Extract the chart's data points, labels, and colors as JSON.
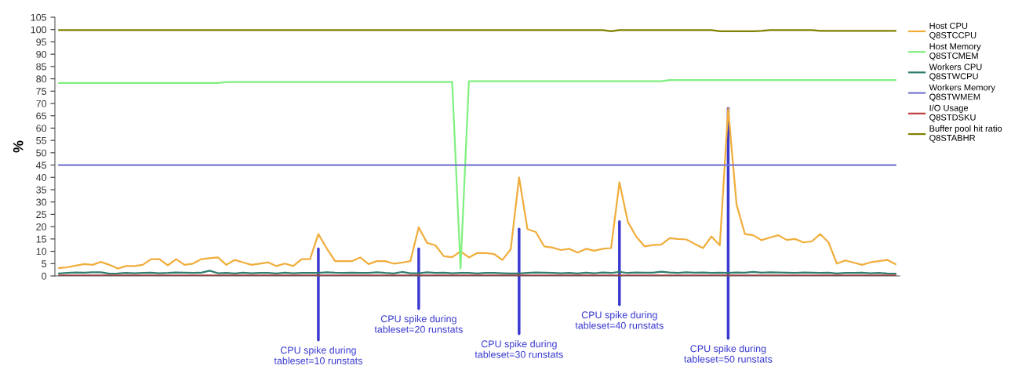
{
  "chart_data": {
    "type": "line",
    "ylabel": "%",
    "categories": [
      null,
      null,
      null,
      null,
      null,
      null,
      null,
      null,
      null,
      null,
      null,
      null,
      null,
      null,
      null,
      null,
      null,
      null,
      null,
      null,
      null,
      null,
      null,
      null,
      null,
      null,
      null,
      null,
      null,
      null,
      null,
      null,
      null,
      null,
      null,
      null,
      null,
      null,
      null,
      null,
      null,
      null,
      null,
      null,
      null,
      null,
      null,
      null,
      null,
      null,
      null,
      null,
      null,
      null,
      null,
      null,
      null,
      null,
      null,
      null,
      null,
      null,
      null,
      null,
      null,
      null,
      null,
      null,
      null,
      null,
      null,
      null,
      null,
      null,
      null,
      null,
      null,
      null,
      null,
      null,
      null,
      null,
      null,
      null,
      null,
      null,
      null,
      null,
      null,
      null,
      null,
      null,
      null,
      null,
      null,
      null,
      null,
      null,
      null,
      null,
      null
    ],
    "ylim": [
      0,
      105
    ],
    "yticks": [
      0,
      5,
      10,
      15,
      20,
      25,
      30,
      35,
      40,
      45,
      50,
      55,
      60,
      65,
      70,
      75,
      80,
      85,
      90,
      95,
      100,
      105
    ],
    "tick_labels": "y",
    "grid": false,
    "legend": "right",
    "marker": "none",
    "line_style": "solid",
    "series": [
      {
        "name": "Host CPU\nQ8STCCPU",
        "color": "#f0ad3c",
        "values": [
          3.2,
          3.5,
          4.2,
          4.8,
          4.5,
          5.7,
          4.5,
          3,
          4,
          4,
          4.5,
          6.8,
          6.8,
          4.3,
          6.8,
          4.5,
          5,
          6.8,
          7.2,
          7.5,
          4.5,
          6.5,
          5.5,
          4.5,
          5,
          5.5,
          4,
          5,
          4,
          6.8,
          6.8,
          17,
          11.2,
          6,
          6,
          6,
          7.5,
          4.8,
          6,
          6,
          5,
          5.4,
          6,
          19.7,
          13.4,
          12.4,
          8,
          7.6,
          10,
          7.5,
          9.3,
          9.3,
          8.9,
          6.5,
          10.8,
          40,
          19,
          17.8,
          12,
          11.5,
          10.5,
          11,
          9.5,
          11,
          10.2,
          11,
          11.3,
          38,
          22,
          16,
          12,
          12.5,
          12.7,
          15.3,
          15,
          14.8,
          13,
          11.3,
          16,
          12.4,
          68,
          29,
          17,
          16.5,
          14.5,
          15.6,
          16.5,
          14.6,
          15,
          13.6,
          14,
          17,
          13.6,
          5,
          6.3,
          5.4,
          4.5,
          5.5,
          6,
          6.5,
          4.8
        ]
      },
      {
        "name": "Host Memory\nQ8STCMEM",
        "color": "#80f080",
        "values": [
          78.3,
          78.3,
          78.3,
          78.3,
          78.3,
          78.3,
          78.3,
          78.3,
          78.3,
          78.3,
          78.3,
          78.3,
          78.3,
          78.3,
          78.3,
          78.3,
          78.3,
          78.3,
          78.3,
          78.3,
          78.7,
          78.7,
          78.7,
          78.7,
          78.7,
          78.7,
          78.7,
          78.7,
          78.7,
          78.7,
          78.7,
          78.7,
          78.7,
          78.7,
          78.7,
          78.7,
          78.7,
          78.7,
          78.7,
          78.7,
          78.7,
          78.7,
          78.7,
          78.7,
          78.7,
          78.7,
          78.7,
          78.7,
          3,
          79,
          79,
          79,
          79,
          79,
          79,
          79,
          79,
          79,
          79,
          79,
          79,
          79,
          79,
          79,
          79,
          79,
          79,
          79,
          79,
          79,
          79,
          79,
          79,
          79.5,
          79.5,
          79.5,
          79.5,
          79.5,
          79.5,
          79.5,
          79.5,
          79.5,
          79.5,
          79.5,
          79.5,
          79.5,
          79.5,
          79.5,
          79.5,
          79.5,
          79.5,
          79.5,
          79.5,
          79.5,
          79.5,
          79.5,
          79.5,
          79.5,
          79.5,
          79.5,
          79.5
        ]
      },
      {
        "name": "Workers CPU\nQ8STWCPU",
        "color": "#2e7d6e",
        "values": [
          1,
          1.2,
          1.4,
          1.3,
          1.5,
          1.5,
          0.9,
          1,
          1.2,
          1.1,
          1.2,
          1.3,
          1.1,
          1.2,
          1.4,
          1.3,
          1.2,
          1.3,
          2.1,
          1.1,
          1.2,
          1,
          1.3,
          1.1,
          1.2,
          1.2,
          1,
          1.3,
          1.1,
          1.2,
          1.2,
          1.2,
          1.5,
          1.3,
          1.2,
          1.3,
          1.2,
          1.2,
          1.5,
          1.2,
          1,
          1.6,
          1.1,
          1.1,
          1.5,
          1.2,
          1.3,
          1.1,
          1.2,
          1.2,
          1,
          1.2,
          1.2,
          1.1,
          1,
          1,
          1.2,
          1.4,
          1.3,
          1.2,
          1.1,
          1.2,
          1,
          1.3,
          1.1,
          1.4,
          1.2,
          1.6,
          1.2,
          1.4,
          1.3,
          1.3,
          1.7,
          1.4,
          1.2,
          1.5,
          1.3,
          1.4,
          1.2,
          1.3,
          1.2,
          1.4,
          1.3,
          1.6,
          1.3,
          1.5,
          1.4,
          1.3,
          1.2,
          1.4,
          1.3,
          1.2,
          1.3,
          1,
          1.2,
          1.2,
          1.3,
          1.1,
          1.2,
          1,
          0.9
        ]
      },
      {
        "name": "Workers Memory\nQ8STWMEM",
        "color": "#7878d0",
        "values": [
          45,
          45,
          45,
          45,
          45,
          45,
          45,
          45,
          45,
          45,
          45,
          45,
          45,
          45,
          45,
          45,
          45,
          45,
          45,
          45,
          45,
          45,
          45,
          45,
          45,
          45,
          45,
          45,
          45,
          45,
          45,
          45,
          45,
          45,
          45,
          45,
          45,
          45,
          45,
          45,
          45,
          45,
          45,
          45,
          45,
          45,
          45,
          45,
          45,
          45,
          45,
          45,
          45,
          45,
          45,
          45,
          45,
          45,
          45,
          45,
          45,
          45,
          45,
          45,
          45,
          45,
          45,
          45,
          45,
          45,
          45,
          45,
          45,
          45,
          45,
          45,
          45,
          45,
          45,
          45,
          45,
          45,
          45,
          45,
          45,
          45,
          45,
          45,
          45,
          45,
          45,
          45,
          45,
          45,
          45,
          45,
          45,
          45,
          45,
          45,
          45
        ]
      },
      {
        "name": "I/O Usage\nQ8STDSKU",
        "color": "#c04040",
        "values": [
          0.2,
          0.2,
          0.2,
          0.2,
          0.2,
          0.2,
          0.2,
          0.2,
          0.2,
          0.2,
          0.2,
          0.2,
          0.2,
          0.2,
          0.2,
          0.2,
          0.2,
          0.2,
          0.2,
          0.2,
          0.2,
          0.2,
          0.2,
          0.2,
          0.2,
          0.2,
          0.2,
          0.2,
          0.2,
          0.2,
          0.2,
          0.2,
          0.2,
          0.2,
          0.2,
          0.2,
          0.2,
          0.2,
          0.2,
          0.2,
          0.2,
          0.2,
          0.2,
          0.2,
          0.2,
          0.2,
          0.2,
          0.2,
          0.2,
          0.2,
          0.2,
          0.2,
          0.2,
          0.2,
          0.2,
          0.2,
          0.2,
          0.2,
          0.2,
          0.2,
          0.2,
          0.2,
          0.2,
          0.2,
          0.2,
          0.2,
          0.2,
          0.2,
          0.2,
          0.2,
          0.2,
          0.2,
          0.2,
          0.2,
          0.2,
          0.2,
          0.2,
          0.2,
          0.2,
          0.2,
          0.2,
          0.2,
          0.2,
          0.2,
          0.2,
          0.2,
          0.2,
          0.2,
          0.2,
          0.2,
          0.2,
          0.2,
          0.2,
          0.2,
          0.2,
          0.2,
          0.2,
          0.2,
          0.2,
          0.2,
          0.2
        ]
      },
      {
        "name": "Buffer pool hit ratio\nQ8STABHR",
        "color": "#808000",
        "values": [
          99.8,
          99.8,
          99.8,
          99.8,
          99.8,
          99.8,
          99.8,
          99.8,
          99.8,
          99.8,
          99.8,
          99.8,
          99.8,
          99.8,
          99.8,
          99.8,
          99.8,
          99.8,
          99.8,
          99.8,
          99.8,
          99.8,
          99.8,
          99.8,
          99.8,
          99.8,
          99.8,
          99.8,
          99.8,
          99.8,
          99.8,
          99.8,
          99.8,
          99.8,
          99.8,
          99.8,
          99.8,
          99.8,
          99.8,
          99.8,
          99.8,
          99.8,
          99.8,
          99.8,
          99.8,
          99.8,
          99.8,
          99.8,
          99.8,
          99.8,
          99.8,
          99.8,
          99.8,
          99.8,
          99.8,
          99.8,
          99.8,
          99.8,
          99.8,
          99.8,
          99.8,
          99.8,
          99.8,
          99.8,
          99.8,
          99.8,
          99.3,
          99.8,
          99.8,
          99.8,
          99.8,
          99.8,
          99.8,
          99.8,
          99.8,
          99.8,
          99.8,
          99.8,
          99.8,
          99.3,
          99.3,
          99.3,
          99.3,
          99.3,
          99.5,
          99.8,
          99.8,
          99.8,
          99.8,
          99.8,
          99.8,
          99.5,
          99.5,
          99.5,
          99.5,
          99.5,
          99.5,
          99.5,
          99.5,
          99.5,
          99.5
        ]
      }
    ],
    "annotations": [
      "CPU spike during\ntableset=10 runstats",
      "CPU spike during\ntableset=20 runstats",
      "CPU spike during\ntableset=30 runstats",
      "CPU spike during\ntableset=40 runstats",
      "CPU spike during\ntableset=50 runstats"
    ]
  }
}
